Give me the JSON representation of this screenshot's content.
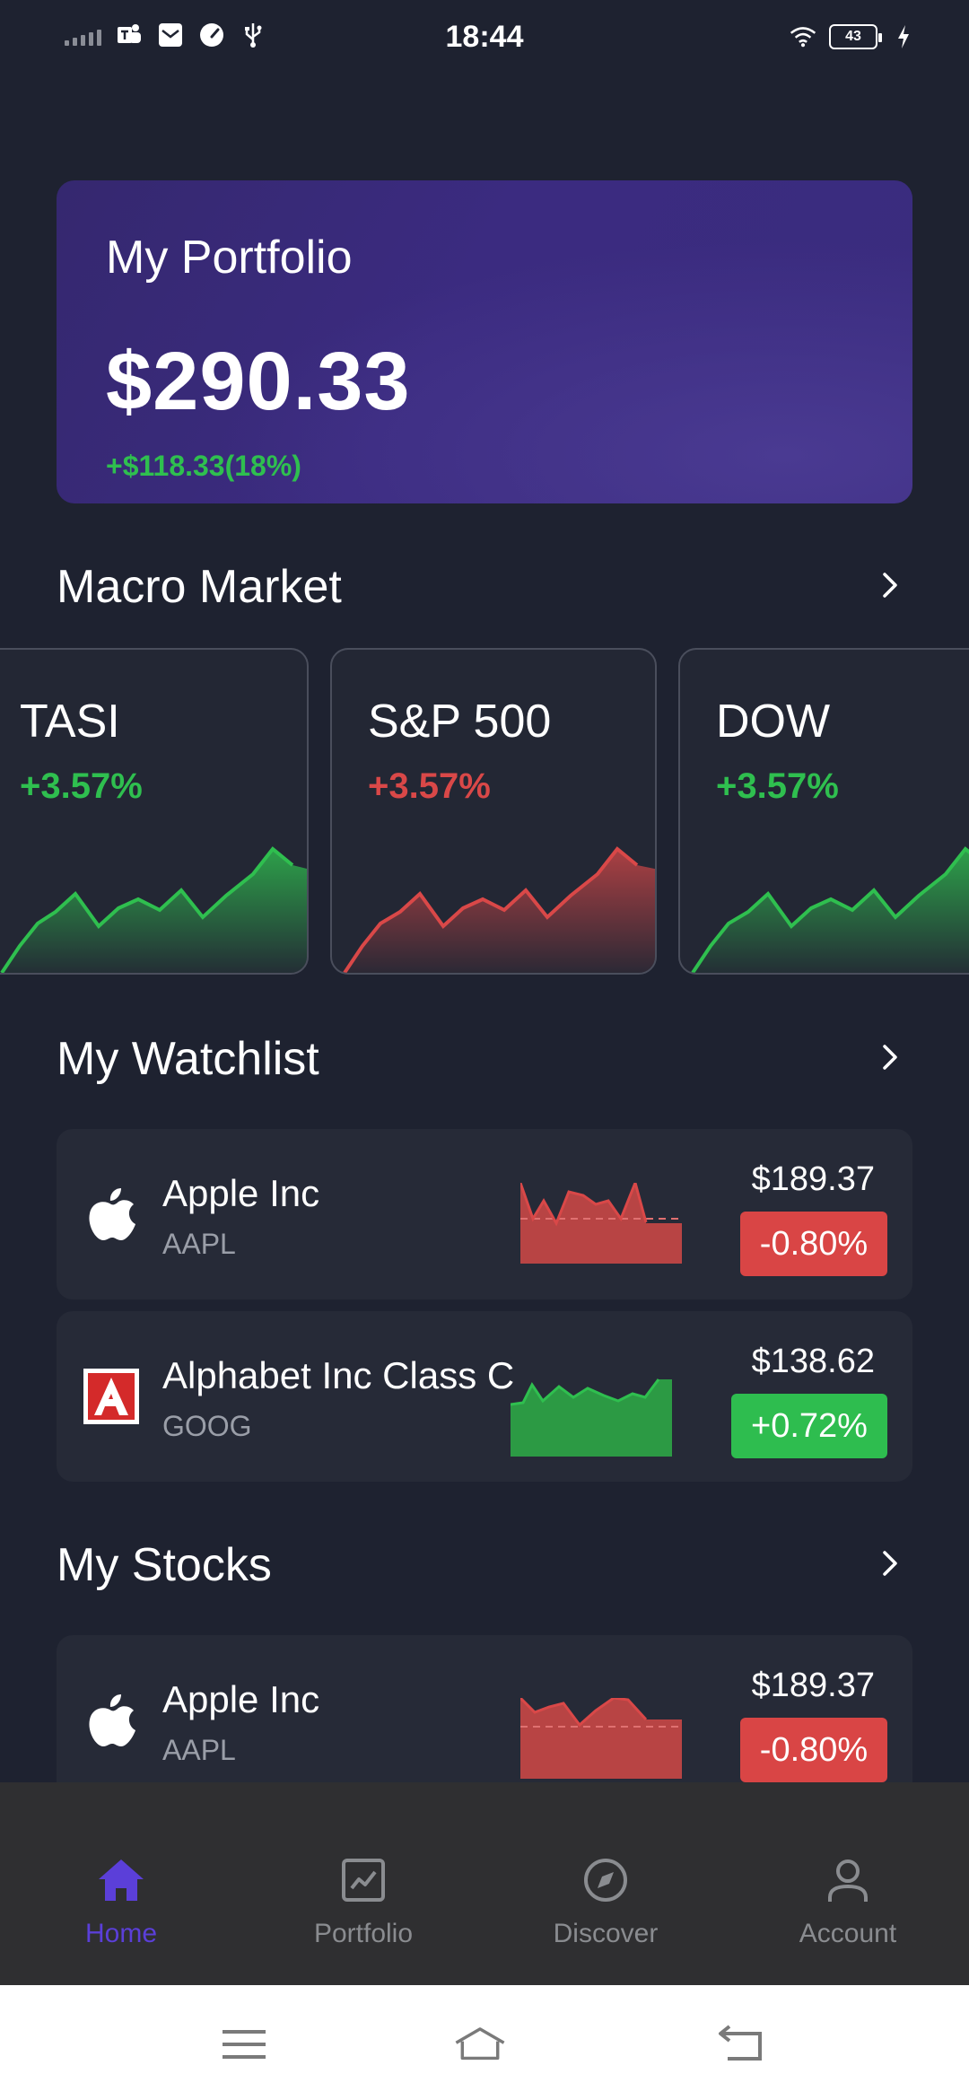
{
  "status_bar": {
    "time": "18:44",
    "battery": "43",
    "icons": [
      "signal-icon",
      "teams-icon",
      "mail-icon",
      "speedometer-icon",
      "usb-icon",
      "wifi-icon",
      "battery-icon",
      "charging-icon"
    ]
  },
  "portfolio": {
    "title": "My Portfolio",
    "value": "$290.33",
    "change": "+$118.33(18%)"
  },
  "sections": {
    "macro_market": "Macro Market",
    "watchlist": "My Watchlist",
    "stocks": "My Stocks"
  },
  "macro_market": [
    {
      "name": "TASI",
      "change": "+3.57%",
      "trend": "up"
    },
    {
      "name": "S&P 500",
      "change": "+3.57%",
      "trend": "down"
    },
    {
      "name": "DOW",
      "change": "+3.57%",
      "trend": "up"
    }
  ],
  "watchlist": [
    {
      "name": "Apple Inc",
      "ticker": "AAPL",
      "price": "$189.37",
      "change": "-0.80%",
      "trend": "down",
      "logo": "apple-logo-icon"
    },
    {
      "name": "Alphabet Inc Class C",
      "ticker": "GOOG",
      "price": "$138.62",
      "change": "+0.72%",
      "trend": "up",
      "logo": "alphabet-logo-icon"
    }
  ],
  "stocks": [
    {
      "name": "Apple Inc",
      "ticker": "AAPL",
      "price": "$189.37",
      "change": "-0.80%",
      "trend": "down",
      "logo": "apple-logo-icon"
    }
  ],
  "nav": {
    "items": [
      {
        "label": "Home",
        "icon": "home-icon",
        "active": true
      },
      {
        "label": "Portfolio",
        "icon": "portfolio-chart-icon",
        "active": false
      },
      {
        "label": "Discover",
        "icon": "compass-icon",
        "active": false
      },
      {
        "label": "Account",
        "icon": "user-icon",
        "active": false
      }
    ]
  },
  "colors": {
    "background": "#1e2230",
    "card": "#262a37",
    "accent": "#5b3fd9",
    "positive": "#2fbf4f",
    "negative": "#d94848",
    "positive_badge": "#2ebd4f",
    "negative_badge": "#d94545"
  }
}
